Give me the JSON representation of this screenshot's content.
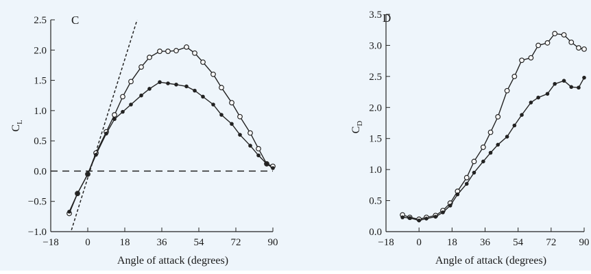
{
  "chart_data": [
    {
      "type": "line",
      "panel_label": "C",
      "xlabel": "Angle of attack (degrees)",
      "ylabel": "C",
      "ylabel_sub": "L",
      "xlim": [
        -18,
        90
      ],
      "ylim": [
        -1.0,
        2.5
      ],
      "xticks": [
        "−18",
        "0",
        "18",
        "36",
        "54",
        "72",
        "90"
      ],
      "xtick_values": [
        -18,
        0,
        18,
        36,
        54,
        72,
        90
      ],
      "yticks": [
        "−1.0",
        "−0.5",
        "0.0",
        "0.5",
        "1.0",
        "1.5",
        "2.0",
        "2.5"
      ],
      "ytick_values": [
        -1.0,
        -0.5,
        0.0,
        0.5,
        1.0,
        1.5,
        2.0,
        2.5
      ],
      "grid": false,
      "series": [
        {
          "marker": "open-circle",
          "x": [
            -9,
            -5,
            0,
            4,
            9,
            13,
            17,
            21,
            26,
            30,
            35,
            39,
            43,
            48,
            52,
            56,
            61,
            65,
            70,
            74,
            79,
            83,
            87,
            90
          ],
          "y": [
            -0.7,
            -0.37,
            -0.05,
            0.3,
            0.65,
            0.93,
            1.23,
            1.48,
            1.72,
            1.88,
            1.98,
            1.98,
            1.99,
            2.05,
            1.95,
            1.8,
            1.6,
            1.38,
            1.13,
            0.9,
            0.63,
            0.37,
            0.12,
            0.08
          ]
        },
        {
          "marker": "filled-dot",
          "x": [
            -9,
            -5,
            0,
            4,
            9,
            13,
            17,
            21,
            26,
            30,
            35,
            39,
            43,
            48,
            52,
            56,
            61,
            65,
            70,
            74,
            79,
            83,
            87,
            90
          ],
          "y": [
            -0.67,
            -0.37,
            -0.05,
            0.27,
            0.62,
            0.86,
            0.98,
            1.1,
            1.25,
            1.36,
            1.47,
            1.45,
            1.43,
            1.4,
            1.33,
            1.23,
            1.1,
            0.93,
            0.78,
            0.6,
            0.42,
            0.26,
            0.12,
            0.05
          ]
        }
      ],
      "reference_lines": [
        {
          "style": "short-dash",
          "x": [
            -10,
            24
          ],
          "y": [
            -1.2,
            2.5
          ]
        },
        {
          "style": "long-dash",
          "x": [
            -18,
            90
          ],
          "y": [
            0.0,
            0.0
          ]
        }
      ]
    },
    {
      "type": "line",
      "panel_label": "D",
      "xlabel": "Angle of attack (degrees)",
      "ylabel": "C",
      "ylabel_sub": "D",
      "xlim": [
        -18,
        90
      ],
      "ylim": [
        0.0,
        3.5
      ],
      "xticks": [
        "−18",
        "0",
        "18",
        "36",
        "54",
        "72",
        "90"
      ],
      "xtick_values": [
        -18,
        0,
        18,
        36,
        54,
        72,
        90
      ],
      "yticks": [
        "0.0",
        "0.5",
        "1.0",
        "1.5",
        "2.0",
        "2.5",
        "3.0",
        "3.5"
      ],
      "ytick_values": [
        0.0,
        0.5,
        1.0,
        1.5,
        2.0,
        2.5,
        3.0,
        3.5
      ],
      "grid": false,
      "series": [
        {
          "marker": "open-circle",
          "x": [
            -9,
            -5,
            0,
            4,
            9,
            13,
            17,
            21,
            26,
            30,
            35,
            39,
            43,
            48,
            52,
            56,
            61,
            65,
            70,
            74,
            79,
            83,
            87,
            90
          ],
          "y": [
            0.27,
            0.23,
            0.2,
            0.23,
            0.26,
            0.34,
            0.46,
            0.65,
            0.87,
            1.13,
            1.36,
            1.6,
            1.85,
            2.27,
            2.5,
            2.76,
            2.8,
            3.0,
            3.04,
            3.19,
            3.17,
            3.05,
            2.96,
            2.94
          ]
        },
        {
          "marker": "filled-dot",
          "x": [
            -9,
            -5,
            0,
            4,
            9,
            13,
            17,
            21,
            26,
            30,
            35,
            39,
            43,
            48,
            52,
            56,
            61,
            65,
            70,
            74,
            79,
            83,
            87,
            90
          ],
          "y": [
            0.23,
            0.22,
            0.18,
            0.21,
            0.24,
            0.31,
            0.42,
            0.6,
            0.77,
            0.95,
            1.13,
            1.27,
            1.4,
            1.53,
            1.71,
            1.88,
            2.08,
            2.16,
            2.22,
            2.38,
            2.43,
            2.33,
            2.32,
            2.48
          ]
        }
      ]
    }
  ]
}
